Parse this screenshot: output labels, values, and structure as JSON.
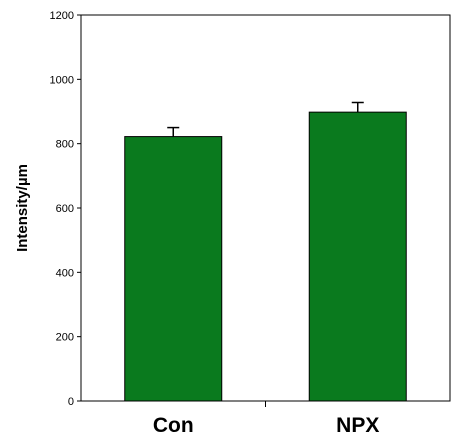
{
  "chart_data": {
    "type": "bar",
    "categories": [
      "Con",
      "NPX"
    ],
    "values": [
      822,
      898
    ],
    "errors": [
      28,
      30
    ],
    "ylabel": "Intensity/µm",
    "ylim": [
      0,
      1200
    ],
    "yticks": [
      "0",
      "200",
      "400",
      "600",
      "800",
      "1000",
      "1200"
    ],
    "grid": false,
    "bar_color": "#0a7a1e"
  }
}
